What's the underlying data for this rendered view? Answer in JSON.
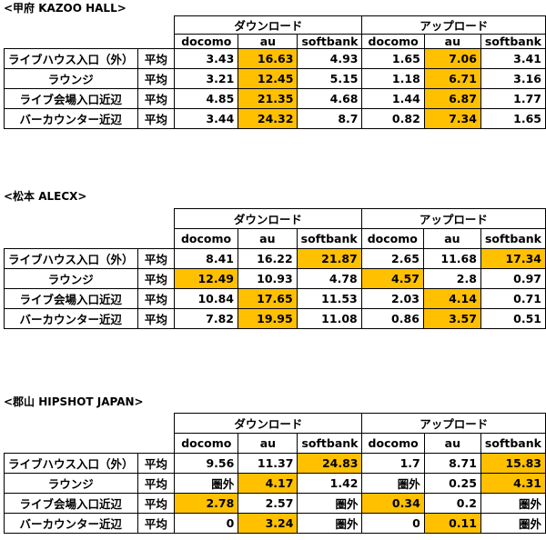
{
  "sections": [
    {
      "title": "<甲府 KAZOO HALL>",
      "groups": [
        "ダウンロード",
        "アップロード"
      ],
      "carriers": [
        "docomo",
        "au",
        "softbank",
        "docomo",
        "au",
        "softbank"
      ],
      "rows": [
        [
          "ライブハウス入口（外）",
          "平均",
          "3.43",
          "16.63",
          "4.93",
          "1.65",
          "7.06",
          "3.41"
        ],
        [
          "ラウンジ",
          "平均",
          "3.21",
          "12.45",
          "5.15",
          "1.18",
          "6.71",
          "3.16"
        ],
        [
          "ライブ会場入口近辺",
          "平均",
          "4.85",
          "21.35",
          "4.68",
          "1.44",
          "6.87",
          "1.77"
        ],
        [
          "バーカウンター近辺",
          "平均",
          "3.44",
          "24.32",
          "8.7",
          "0.82",
          "7.34",
          "1.65"
        ]
      ],
      "highlight": [
        [
          0,
          3
        ],
        [
          0,
          6
        ],
        [
          1,
          3
        ],
        [
          1,
          6
        ],
        [
          2,
          3
        ],
        [
          2,
          6
        ],
        [
          3,
          3
        ],
        [
          3,
          6
        ]
      ]
    },
    {
      "title": "<松本 ALECX>",
      "groups": [
        "ダウンロード",
        "アップロード"
      ],
      "carriers": [
        "docomo",
        "au",
        "softbank",
        "docomo",
        "au",
        "softbank"
      ],
      "rows": [
        [
          "ライブハウス入口（外）",
          "平均",
          "8.41",
          "16.22",
          "21.87",
          "2.65",
          "11.68",
          "17.34"
        ],
        [
          "ラウンジ",
          "平均",
          "12.49",
          "10.93",
          "4.78",
          "4.57",
          "2.8",
          "0.97"
        ],
        [
          "ライブ会場入口近辺",
          "平均",
          "10.84",
          "17.65",
          "11.53",
          "2.03",
          "4.14",
          "0.71"
        ],
        [
          "バーカウンター近辺",
          "平均",
          "7.82",
          "19.95",
          "11.08",
          "0.86",
          "3.57",
          "0.51"
        ]
      ],
      "highlight": [
        [
          0,
          4
        ],
        [
          0,
          7
        ],
        [
          1,
          2
        ],
        [
          1,
          5
        ],
        [
          2,
          3
        ],
        [
          2,
          6
        ],
        [
          3,
          3
        ],
        [
          3,
          6
        ]
      ]
    },
    {
      "title": "<郡山 HIPSHOT JAPAN>",
      "groups": [
        "ダウンロード",
        "アップロード"
      ],
      "carriers": [
        "docomo",
        "au",
        "softbank",
        "docomo",
        "au",
        "softbank"
      ],
      "rows": [
        [
          "ライブハウス入口（外）",
          "平均",
          "9.56",
          "11.37",
          "24.83",
          "1.7",
          "8.71",
          "15.83"
        ],
        [
          "ラウンジ",
          "平均",
          "圏外",
          "4.17",
          "1.42",
          "圏外",
          "0.25",
          "4.31"
        ],
        [
          "ライブ会場入口近辺",
          "平均",
          "2.78",
          "2.57",
          "圏外",
          "0.34",
          "0.2",
          "圏外"
        ],
        [
          "バーカウンター近辺",
          "平均",
          "0",
          "3.24",
          "圏外",
          "0",
          "0.11",
          "圏外"
        ]
      ],
      "highlight": [
        [
          0,
          4
        ],
        [
          0,
          7
        ],
        [
          1,
          3
        ],
        [
          1,
          7
        ],
        [
          2,
          2
        ],
        [
          2,
          5
        ],
        [
          3,
          3
        ],
        [
          3,
          6
        ]
      ]
    }
  ]
}
